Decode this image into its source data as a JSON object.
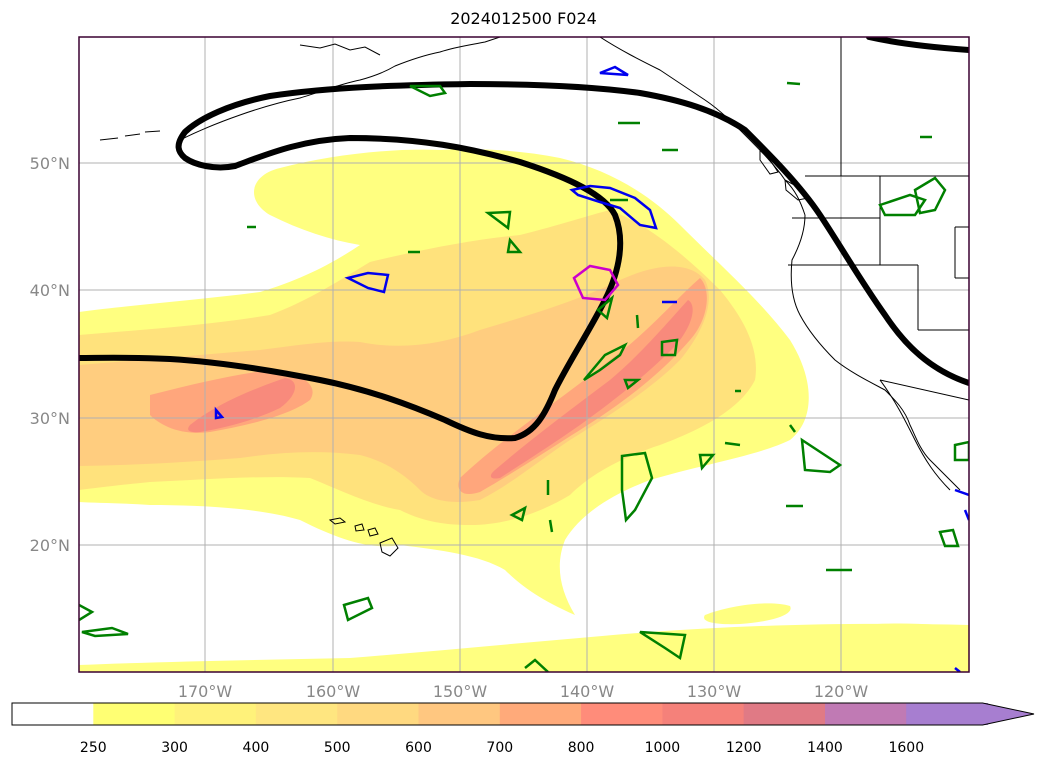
{
  "title": "2024012500 F024",
  "map": {
    "lat_labels": [
      "50°N",
      "40°N",
      "30°N",
      "20°N"
    ],
    "lon_labels": [
      "170°W",
      "160°W",
      "150°W",
      "140°W",
      "130°W",
      "120°W"
    ],
    "gridlines": true,
    "grid_color": "#b0b0b0",
    "label_color": "#888888"
  },
  "colorbar": {
    "levels": [
      "250",
      "300",
      "400",
      "500",
      "600",
      "700",
      "800",
      "1000",
      "1200",
      "1400",
      "1600"
    ],
    "colors": [
      "#ffff73",
      "#fff27a",
      "#ffe680",
      "#ffd980",
      "#ffc780",
      "#ffaa7a",
      "#ff8c7a",
      "#f5817a",
      "#e07a85",
      "#c07ab4",
      "#a77ed0"
    ],
    "extend": "max",
    "under_color": "#ffffff"
  },
  "contours": {
    "heavy_line_color": "#000000",
    "green_contour_color": "#008000",
    "blue_contour_color": "#0000ee",
    "magenta_contour_color": "#cc00cc"
  }
}
